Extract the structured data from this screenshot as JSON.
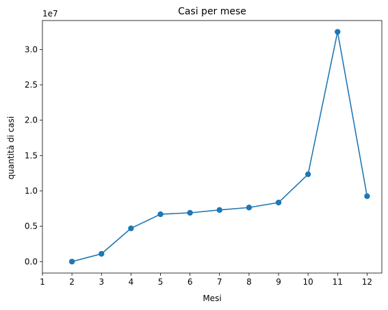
{
  "chart_data": {
    "type": "line",
    "title": "Casi per mese",
    "xlabel": "Mesi",
    "ylabel": "quantità di casi",
    "y_multiplier_label": "1e7",
    "xlim": [
      1,
      12.5
    ],
    "ylim": [
      -1620000,
      34100000
    ],
    "x_ticks": [
      1,
      2,
      3,
      4,
      5,
      6,
      7,
      8,
      9,
      10,
      11,
      12
    ],
    "x_tick_labels": [
      "1",
      "2",
      "3",
      "4",
      "5",
      "6",
      "7",
      "8",
      "9",
      "10",
      "11",
      "12"
    ],
    "y_ticks": [
      0,
      5000000,
      10000000,
      15000000,
      20000000,
      25000000,
      30000000
    ],
    "y_tick_labels": [
      "0.0",
      "0.5",
      "1.0",
      "1.5",
      "2.0",
      "2.5",
      "3.0"
    ],
    "grid": false,
    "colors": {
      "series": "#1f77b4",
      "axis": "#000000"
    },
    "series": [
      {
        "x": [
          2,
          3,
          4,
          5,
          6,
          7,
          8,
          9,
          10,
          11,
          12
        ],
        "values": [
          0,
          1100000,
          4700000,
          6700000,
          6900000,
          7300000,
          7650000,
          8350000,
          12350000,
          32500000,
          9250000
        ]
      }
    ]
  }
}
